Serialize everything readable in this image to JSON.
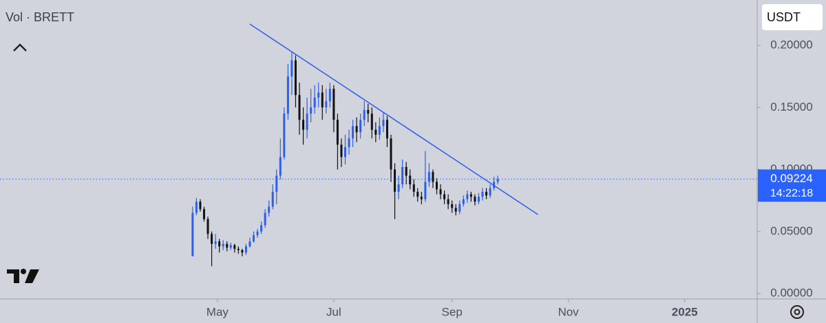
{
  "header": {
    "title": "Vol · BRETT",
    "currency": "USDT"
  },
  "chart_data": {
    "type": "candlestick",
    "up_color": "#2f5fe6",
    "down_color": "#111111",
    "xlim": [
      -84,
      313
    ],
    "xticks": [
      {
        "value": 30,
        "label": "May"
      },
      {
        "value": 91,
        "label": "Jul"
      },
      {
        "value": 153,
        "label": "Sep"
      },
      {
        "value": 214,
        "label": "Nov"
      },
      {
        "value": 275,
        "label": "2025"
      }
    ],
    "ylim": [
      -0.0044,
      0.2366
    ],
    "yticks": [
      {
        "value": 0,
        "label": "0.00000"
      },
      {
        "value": 0.05,
        "label": "0.05000"
      },
      {
        "value": 0.1,
        "label": "0.10000"
      },
      {
        "value": 0.15,
        "label": "0.15000"
      },
      {
        "value": 0.2,
        "label": "0.20000"
      }
    ],
    "x": [
      17,
      19,
      21,
      23,
      25,
      27,
      29,
      31,
      33,
      35,
      37,
      39,
      41,
      43,
      45,
      47,
      49,
      51,
      53,
      55,
      57,
      59,
      61,
      63,
      65,
      67,
      69,
      71,
      73,
      75,
      77,
      79,
      81,
      83,
      85,
      87,
      89,
      91,
      93,
      95,
      97,
      99,
      101,
      103,
      105,
      107,
      109,
      111,
      113,
      115,
      117,
      119,
      121,
      123,
      125,
      127,
      129,
      131,
      133,
      135,
      137,
      139,
      141,
      143,
      145,
      147,
      149,
      151,
      153,
      155,
      157,
      159,
      161,
      163,
      165,
      167,
      169,
      171,
      173,
      175,
      177
    ],
    "open": [
      0.03,
      0.065,
      0.074,
      0.068,
      0.06,
      0.048,
      0.04,
      0.042,
      0.038,
      0.04,
      0.037,
      0.039,
      0.036,
      0.035,
      0.033,
      0.038,
      0.042,
      0.047,
      0.05,
      0.055,
      0.065,
      0.07,
      0.082,
      0.095,
      0.11,
      0.145,
      0.175,
      0.188,
      0.16,
      0.14,
      0.132,
      0.145,
      0.15,
      0.158,
      0.162,
      0.15,
      0.155,
      0.165,
      0.14,
      0.12,
      0.11,
      0.118,
      0.125,
      0.135,
      0.13,
      0.14,
      0.148,
      0.145,
      0.132,
      0.128,
      0.135,
      0.14,
      0.125,
      0.1,
      0.082,
      0.088,
      0.102,
      0.095,
      0.088,
      0.082,
      0.078,
      0.076,
      0.09,
      0.098,
      0.09,
      0.084,
      0.08,
      0.076,
      0.072,
      0.069,
      0.066,
      0.072,
      0.076,
      0.08,
      0.078,
      0.074,
      0.078,
      0.082,
      0.079,
      0.085,
      0.09
    ],
    "high": [
      0.07,
      0.077,
      0.076,
      0.07,
      0.062,
      0.05,
      0.048,
      0.044,
      0.043,
      0.042,
      0.041,
      0.04,
      0.038,
      0.036,
      0.04,
      0.045,
      0.05,
      0.052,
      0.058,
      0.068,
      0.075,
      0.088,
      0.1,
      0.125,
      0.15,
      0.185,
      0.195,
      0.192,
      0.17,
      0.15,
      0.158,
      0.165,
      0.168,
      0.17,
      0.168,
      0.165,
      0.17,
      0.168,
      0.145,
      0.125,
      0.128,
      0.132,
      0.14,
      0.142,
      0.145,
      0.155,
      0.153,
      0.15,
      0.138,
      0.142,
      0.146,
      0.143,
      0.128,
      0.105,
      0.095,
      0.108,
      0.106,
      0.1,
      0.092,
      0.085,
      0.082,
      0.115,
      0.105,
      0.1,
      0.093,
      0.088,
      0.083,
      0.08,
      0.075,
      0.072,
      0.075,
      0.079,
      0.083,
      0.082,
      0.08,
      0.081,
      0.085,
      0.085,
      0.088,
      0.094,
      0.095
    ],
    "low": [
      0.03,
      0.063,
      0.066,
      0.058,
      0.044,
      0.022,
      0.036,
      0.033,
      0.035,
      0.034,
      0.035,
      0.033,
      0.032,
      0.03,
      0.031,
      0.037,
      0.041,
      0.045,
      0.048,
      0.053,
      0.062,
      0.068,
      0.072,
      0.092,
      0.108,
      0.14,
      0.16,
      0.15,
      0.128,
      0.12,
      0.125,
      0.138,
      0.145,
      0.15,
      0.14,
      0.145,
      0.15,
      0.13,
      0.1,
      0.102,
      0.104,
      0.112,
      0.118,
      0.122,
      0.125,
      0.135,
      0.138,
      0.125,
      0.122,
      0.124,
      0.13,
      0.118,
      0.09,
      0.06,
      0.076,
      0.085,
      0.088,
      0.084,
      0.078,
      0.074,
      0.072,
      0.074,
      0.086,
      0.085,
      0.08,
      0.076,
      0.072,
      0.068,
      0.065,
      0.063,
      0.064,
      0.07,
      0.073,
      0.074,
      0.071,
      0.072,
      0.075,
      0.076,
      0.077,
      0.083,
      0.088
    ],
    "close": [
      0.065,
      0.074,
      0.068,
      0.06,
      0.048,
      0.04,
      0.042,
      0.038,
      0.04,
      0.037,
      0.039,
      0.036,
      0.035,
      0.033,
      0.038,
      0.042,
      0.047,
      0.05,
      0.055,
      0.065,
      0.07,
      0.082,
      0.095,
      0.11,
      0.145,
      0.175,
      0.188,
      0.16,
      0.14,
      0.132,
      0.145,
      0.15,
      0.158,
      0.162,
      0.15,
      0.155,
      0.165,
      0.14,
      0.12,
      0.11,
      0.118,
      0.125,
      0.135,
      0.13,
      0.14,
      0.148,
      0.145,
      0.132,
      0.128,
      0.135,
      0.14,
      0.125,
      0.1,
      0.082,
      0.088,
      0.102,
      0.095,
      0.088,
      0.082,
      0.078,
      0.076,
      0.09,
      0.098,
      0.09,
      0.084,
      0.08,
      0.076,
      0.072,
      0.069,
      0.066,
      0.072,
      0.076,
      0.08,
      0.078,
      0.074,
      0.078,
      0.082,
      0.079,
      0.085,
      0.09,
      0.09224
    ],
    "trendline": {
      "x": [
        47,
        198
      ],
      "y": [
        0.2172,
        0.0637
      ],
      "color": "#2f5fe6"
    },
    "last_price": {
      "value": 0.09224,
      "countdown": "14:22:18",
      "color": "#2962ff"
    }
  }
}
